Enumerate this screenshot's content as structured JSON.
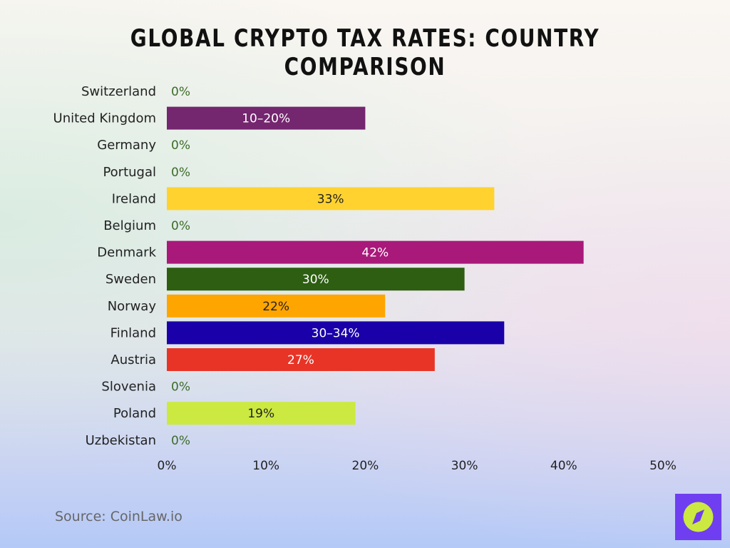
{
  "chart_data": {
    "type": "bar",
    "orientation": "horizontal",
    "title": "Global Crypto Tax Rates: Country Comparison",
    "categories": [
      "Switzerland",
      "United Kingdom",
      "Germany",
      "Portugal",
      "Ireland",
      "Belgium",
      "Denmark",
      "Sweden",
      "Norway",
      "Finland",
      "Austria",
      "Slovenia",
      "Poland",
      "Uzbekistan"
    ],
    "values": [
      0,
      20,
      0,
      0,
      33,
      0,
      42,
      30,
      22,
      34,
      27,
      0,
      19,
      0
    ],
    "data_labels": [
      "0%",
      "10–20%",
      "0%",
      "0%",
      "33%",
      "0%",
      "42%",
      "30%",
      "22%",
      "30–34%",
      "27%",
      "0%",
      "19%",
      "0%"
    ],
    "colors": [
      "#3d6b2a",
      "#74266f",
      "#3d6b2a",
      "#3d6b2a",
      "#ffd22f",
      "#3d6b2a",
      "#a8197a",
      "#2d5e12",
      "#ffa500",
      "#1a00a8",
      "#e83427",
      "#3d6b2a",
      "#cbe940",
      "#3d6b2a"
    ],
    "xlim": [
      0,
      50
    ],
    "xticks": [
      0,
      10,
      20,
      30,
      40,
      50
    ],
    "xtick_labels": [
      "0%",
      "10%",
      "20%",
      "30%",
      "40%",
      "50%"
    ],
    "grid": false,
    "xlabel": "",
    "ylabel": ""
  },
  "source": "Source: CoinLaw.io",
  "logo": {
    "icon": "compass-icon",
    "color": "#6f3ef0",
    "accent": "#cbe940"
  }
}
